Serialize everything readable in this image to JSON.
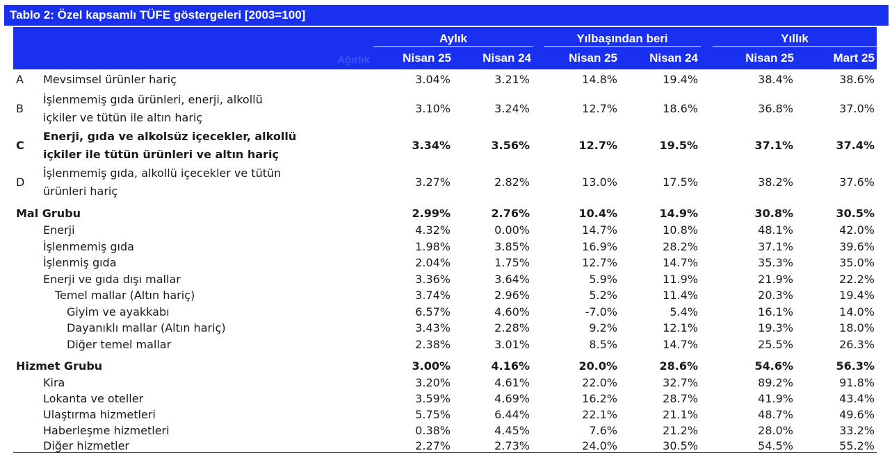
{
  "title": "Tablo 2: Özel kapsamlı TÜFE göstergeleri [2003=100]",
  "header": {
    "weight_label": "Ağırlık",
    "groups": [
      "Aylık",
      "Yılbaşından beri",
      "Yıllık"
    ],
    "columns": [
      "Nisan 25",
      "Nisan 24",
      "Nisan 25",
      "Nisan 24",
      "Nisan 25",
      "Mart 25"
    ]
  },
  "colors": {
    "header_bg": "#1a30f0",
    "header_text": "#ffffff"
  },
  "rows": [
    {
      "code": "A",
      "label": [
        "Mevsimsel ürünler hariç"
      ],
      "values": [
        "3.04%",
        "3.21%",
        "14.8%",
        "19.4%",
        "38.4%",
        "38.6%"
      ],
      "bold": false,
      "indent": 0
    },
    {
      "code": "B",
      "label": [
        "İşlenmemiş gıda ürünleri, enerji, alkollü",
        "içkiler ve tütün ile altın hariç"
      ],
      "values": [
        "3.10%",
        "3.24%",
        "12.7%",
        "18.6%",
        "36.8%",
        "37.0%"
      ],
      "bold": false,
      "indent": 0
    },
    {
      "code": "C",
      "label": [
        "Enerji, gıda ve alkolsüz içecekler, alkollü",
        "içkiler ile tütün ürünleri ve altın hariç"
      ],
      "values": [
        "3.34%",
        "3.56%",
        "12.7%",
        "19.5%",
        "37.1%",
        "37.4%"
      ],
      "bold": true,
      "indent": 0
    },
    {
      "code": "D",
      "label": [
        "İşlenmemiş gıda, alkollü içecekler ve tütün",
        "ürünleri hariç"
      ],
      "values": [
        "3.27%",
        "2.82%",
        "13.0%",
        "17.5%",
        "38.2%",
        "37.6%"
      ],
      "bold": false,
      "indent": 0
    },
    {
      "code": "",
      "label": [
        "Mal Grubu"
      ],
      "values": [
        "2.99%",
        "2.76%",
        "10.4%",
        "14.9%",
        "30.8%",
        "30.5%"
      ],
      "bold": true,
      "indent": -1
    },
    {
      "code": "",
      "label": [
        "Enerji"
      ],
      "values": [
        "4.32%",
        "0.00%",
        "14.7%",
        "10.8%",
        "48.1%",
        "42.0%"
      ],
      "bold": false,
      "indent": 0
    },
    {
      "code": "",
      "label": [
        "İşlenmemiş gıda"
      ],
      "values": [
        "1.98%",
        "3.85%",
        "16.9%",
        "28.2%",
        "37.1%",
        "39.6%"
      ],
      "bold": false,
      "indent": 0
    },
    {
      "code": "",
      "label": [
        "İşlenmiş gıda"
      ],
      "values": [
        "2.04%",
        "1.75%",
        "12.7%",
        "14.7%",
        "35.3%",
        "35.0%"
      ],
      "bold": false,
      "indent": 0
    },
    {
      "code": "",
      "label": [
        "Enerji ve gıda dışı mallar"
      ],
      "values": [
        "3.36%",
        "3.64%",
        "5.9%",
        "11.9%",
        "21.9%",
        "22.2%"
      ],
      "bold": false,
      "indent": 0
    },
    {
      "code": "",
      "label": [
        "Temel mallar (Altın hariç)"
      ],
      "values": [
        "3.74%",
        "2.96%",
        "5.2%",
        "11.4%",
        "20.3%",
        "19.4%"
      ],
      "bold": false,
      "indent": 1
    },
    {
      "code": "",
      "label": [
        "Giyim ve ayakkabı"
      ],
      "values": [
        "6.57%",
        "4.60%",
        "-7.0%",
        "5.4%",
        "16.1%",
        "14.0%"
      ],
      "bold": false,
      "indent": 2
    },
    {
      "code": "",
      "label": [
        "Dayanıklı mallar (Altın hariç)"
      ],
      "values": [
        "3.43%",
        "2.28%",
        "9.2%",
        "12.1%",
        "19.3%",
        "18.0%"
      ],
      "bold": false,
      "indent": 2
    },
    {
      "code": "",
      "label": [
        "Diğer temel mallar"
      ],
      "values": [
        "2.38%",
        "3.01%",
        "8.5%",
        "14.7%",
        "25.5%",
        "26.3%"
      ],
      "bold": false,
      "indent": 2
    },
    {
      "code": "",
      "label": [
        "Hizmet Grubu"
      ],
      "values": [
        "3.00%",
        "4.16%",
        "20.0%",
        "28.6%",
        "54.6%",
        "56.3%"
      ],
      "bold": true,
      "indent": -1
    },
    {
      "code": "",
      "label": [
        "Kira"
      ],
      "values": [
        "3.20%",
        "4.61%",
        "22.0%",
        "32.7%",
        "89.2%",
        "91.8%"
      ],
      "bold": false,
      "indent": 0
    },
    {
      "code": "",
      "label": [
        "Lokanta ve oteller"
      ],
      "values": [
        "3.59%",
        "4.69%",
        "16.2%",
        "28.7%",
        "41.9%",
        "43.4%"
      ],
      "bold": false,
      "indent": 0
    },
    {
      "code": "",
      "label": [
        "Ulaştırma hizmetleri"
      ],
      "values": [
        "5.75%",
        "6.44%",
        "22.1%",
        "21.1%",
        "48.7%",
        "49.6%"
      ],
      "bold": false,
      "indent": 0
    },
    {
      "code": "",
      "label": [
        "Haberleşme hizmetleri"
      ],
      "values": [
        "0.38%",
        "4.45%",
        "7.6%",
        "21.2%",
        "28.0%",
        "33.2%"
      ],
      "bold": false,
      "indent": 0
    },
    {
      "code": "",
      "label": [
        "Diğer hizmetler"
      ],
      "values": [
        "2.27%",
        "2.73%",
        "24.0%",
        "30.5%",
        "54.5%",
        "55.2%"
      ],
      "bold": false,
      "indent": 0
    }
  ]
}
